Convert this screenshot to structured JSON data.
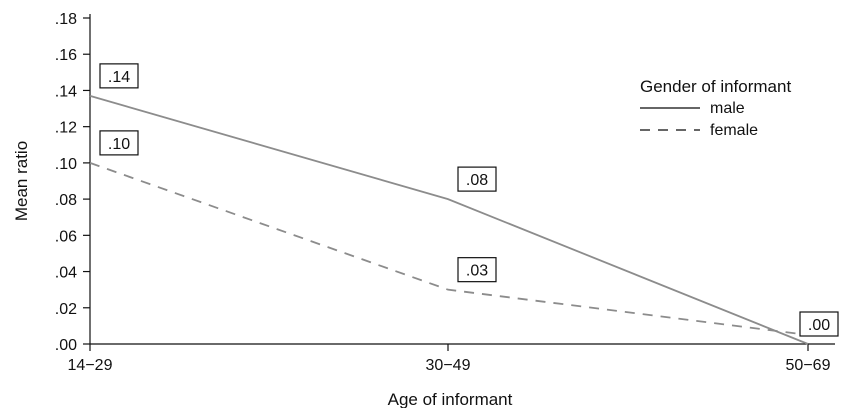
{
  "chart_data": {
    "type": "line",
    "xlabel": "Age of informant",
    "ylabel": "Mean ratio",
    "categories": [
      "14−29",
      "30−49",
      "50−69"
    ],
    "ylim": [
      0,
      0.18
    ],
    "yticks": [
      0,
      0.02,
      0.04,
      0.06,
      0.08,
      0.1,
      0.12,
      0.14,
      0.16,
      0.18
    ],
    "ytick_labels": [
      ".00",
      ".02",
      ".04",
      ".06",
      ".08",
      ".10",
      ".12",
      ".14",
      ".16",
      ".18"
    ],
    "grid": false,
    "legend": {
      "title": "Gender of informant",
      "placement": "top-right"
    },
    "series": [
      {
        "name": "male",
        "values": [
          0.137,
          0.08,
          0.0
        ],
        "style": "solid",
        "color": "#8c8c8c",
        "data_labels": [
          ".14",
          ".08",
          ".00"
        ]
      },
      {
        "name": "female",
        "values": [
          0.1,
          0.03,
          0.005
        ],
        "style": "dashed",
        "color": "#8c8c8c",
        "data_labels": [
          ".10",
          ".03",
          ""
        ]
      }
    ]
  }
}
